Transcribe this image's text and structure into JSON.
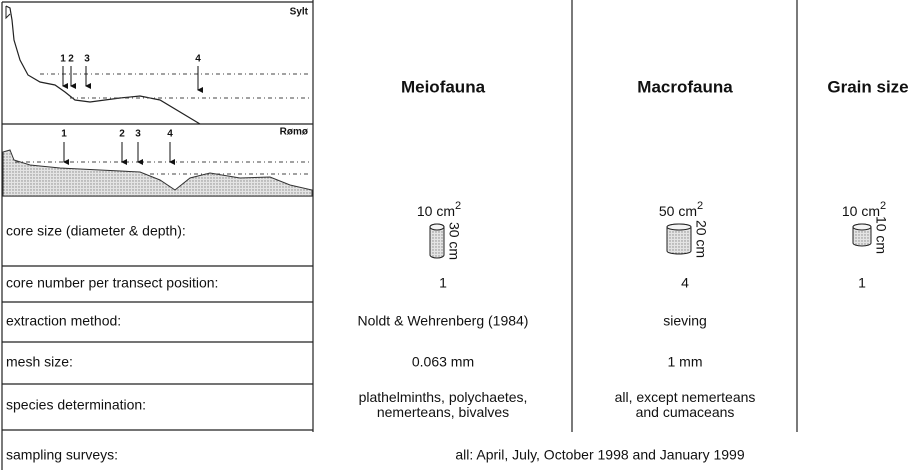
{
  "header": {
    "columns": [
      "Meiofauna",
      "Macrofauna",
      "Grain size"
    ]
  },
  "profiles": [
    {
      "label": "Sylt",
      "markers": [
        "1",
        "2",
        "3",
        "4"
      ]
    },
    {
      "label": "Rømø",
      "markers": [
        "1",
        "2",
        "3",
        "4"
      ]
    }
  ],
  "cores": [
    {
      "area": "10 cm",
      "area_exp": "2",
      "depth": "30 cm"
    },
    {
      "area": "50 cm",
      "area_exp": "2",
      "depth": "20 cm"
    },
    {
      "area": "10 cm",
      "area_exp": "2",
      "depth": "10 cm"
    }
  ],
  "table": {
    "rows": [
      {
        "label": "core size (diameter & depth):",
        "cells": []
      },
      {
        "label": "core number per transect position:",
        "cells": [
          [
            "1"
          ],
          [
            "4"
          ],
          [
            "1"
          ]
        ]
      },
      {
        "label": "extraction method:",
        "cells": [
          [
            "Noldt & Wehrenberg (1984)"
          ],
          [
            "sieving"
          ]
        ]
      },
      {
        "label": "mesh size:",
        "cells": [
          [
            "0.063 mm"
          ],
          [
            "1 mm"
          ]
        ]
      },
      {
        "label": "species determination:",
        "cells": [
          [
            "plathelminths, polychaetes,",
            "nemerteans, bivalves"
          ],
          [
            "all, except nemerteans",
            "and cumaceans"
          ]
        ]
      },
      {
        "label": "sampling surveys:",
        "span": "all: April, July, October 1998 and January 1999"
      }
    ]
  }
}
